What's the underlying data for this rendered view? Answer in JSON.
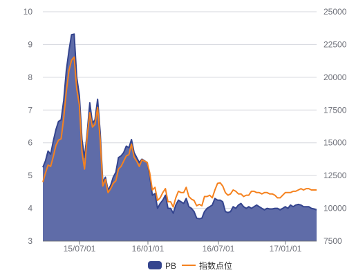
{
  "chart_data": {
    "type": "line",
    "title": "",
    "x_ticks": [
      "15/07/01",
      "16/01/01",
      "16/07/01",
      "17/01/01"
    ],
    "y_left": {
      "min": 3,
      "max": 10,
      "ticks": [
        3,
        4,
        5,
        6,
        7,
        8,
        9,
        10
      ]
    },
    "y_right": {
      "min": 7500,
      "max": 25000,
      "ticks": [
        7500,
        10000,
        12500,
        15000,
        17500,
        20000,
        22500,
        25000
      ]
    },
    "grid": true,
    "legend_position": "bottom-center",
    "series": [
      {
        "name": "PB",
        "kind": "area",
        "axis": "left",
        "color": "#34448e",
        "fill": "#5f6ca8",
        "values": [
          5.25,
          5.45,
          5.75,
          5.65,
          6.05,
          6.4,
          6.65,
          6.7,
          7.3,
          8.2,
          8.8,
          9.3,
          9.32,
          8.0,
          7.45,
          6.1,
          5.55,
          6.3,
          7.22,
          6.6,
          6.7,
          7.33,
          6.3,
          4.8,
          4.95,
          4.55,
          4.7,
          4.95,
          5.1,
          5.55,
          5.6,
          5.7,
          5.9,
          5.85,
          6.1,
          5.7,
          5.55,
          5.4,
          5.5,
          5.45,
          5.4,
          5.0,
          4.4,
          4.45,
          4.0,
          4.15,
          4.25,
          4.4,
          4.0,
          4.0,
          3.85,
          4.1,
          4.25,
          4.2,
          4.15,
          4.3,
          4.05,
          4.0,
          3.9,
          3.7,
          3.68,
          3.7,
          3.9,
          4.0,
          4.05,
          4.1,
          4.3,
          4.25,
          4.25,
          4.2,
          3.9,
          3.87,
          3.9,
          4.05,
          4.0,
          4.1,
          4.15,
          4.05,
          4.0,
          4.05,
          4.0,
          4.05,
          4.1,
          4.05,
          4.0,
          3.95,
          4.0,
          3.98,
          3.98,
          4.0,
          4.0,
          3.95,
          4.0,
          4.05,
          4.0,
          4.1,
          4.05,
          4.1,
          4.12,
          4.1,
          4.05,
          4.05,
          4.05,
          4.0,
          3.98,
          3.95
        ]
      },
      {
        "name": "指数点位",
        "kind": "line",
        "axis": "right",
        "color": "#f5821f",
        "values": [
          12000,
          12700,
          13300,
          13200,
          13950,
          14800,
          15200,
          15300,
          16900,
          18900,
          20500,
          21300,
          21550,
          19100,
          17900,
          14300,
          13000,
          15500,
          17300,
          16200,
          16400,
          17700,
          15200,
          11700,
          12200,
          11200,
          11500,
          11900,
          12100,
          13000,
          13200,
          13600,
          14000,
          14100,
          14900,
          13900,
          13600,
          13200,
          13700,
          13600,
          13500,
          12700,
          11400,
          11600,
          10600,
          10800,
          11200,
          11500,
          10500,
          10500,
          10100,
          10800,
          11300,
          11200,
          11200,
          11600,
          10900,
          10700,
          10600,
          10200,
          10300,
          10200,
          10900,
          10900,
          11000,
          10800,
          11400,
          11900,
          11950,
          11700,
          11200,
          11000,
          11100,
          11400,
          11300,
          11100,
          11100,
          10900,
          11000,
          11000,
          11300,
          11300,
          11200,
          11200,
          11100,
          11200,
          11200,
          11100,
          11100,
          11000,
          10800,
          10800,
          11000,
          11200,
          11200,
          11200,
          11300,
          11300,
          11400,
          11500,
          11400,
          11500,
          11500,
          11400,
          11400,
          11400
        ]
      }
    ]
  }
}
